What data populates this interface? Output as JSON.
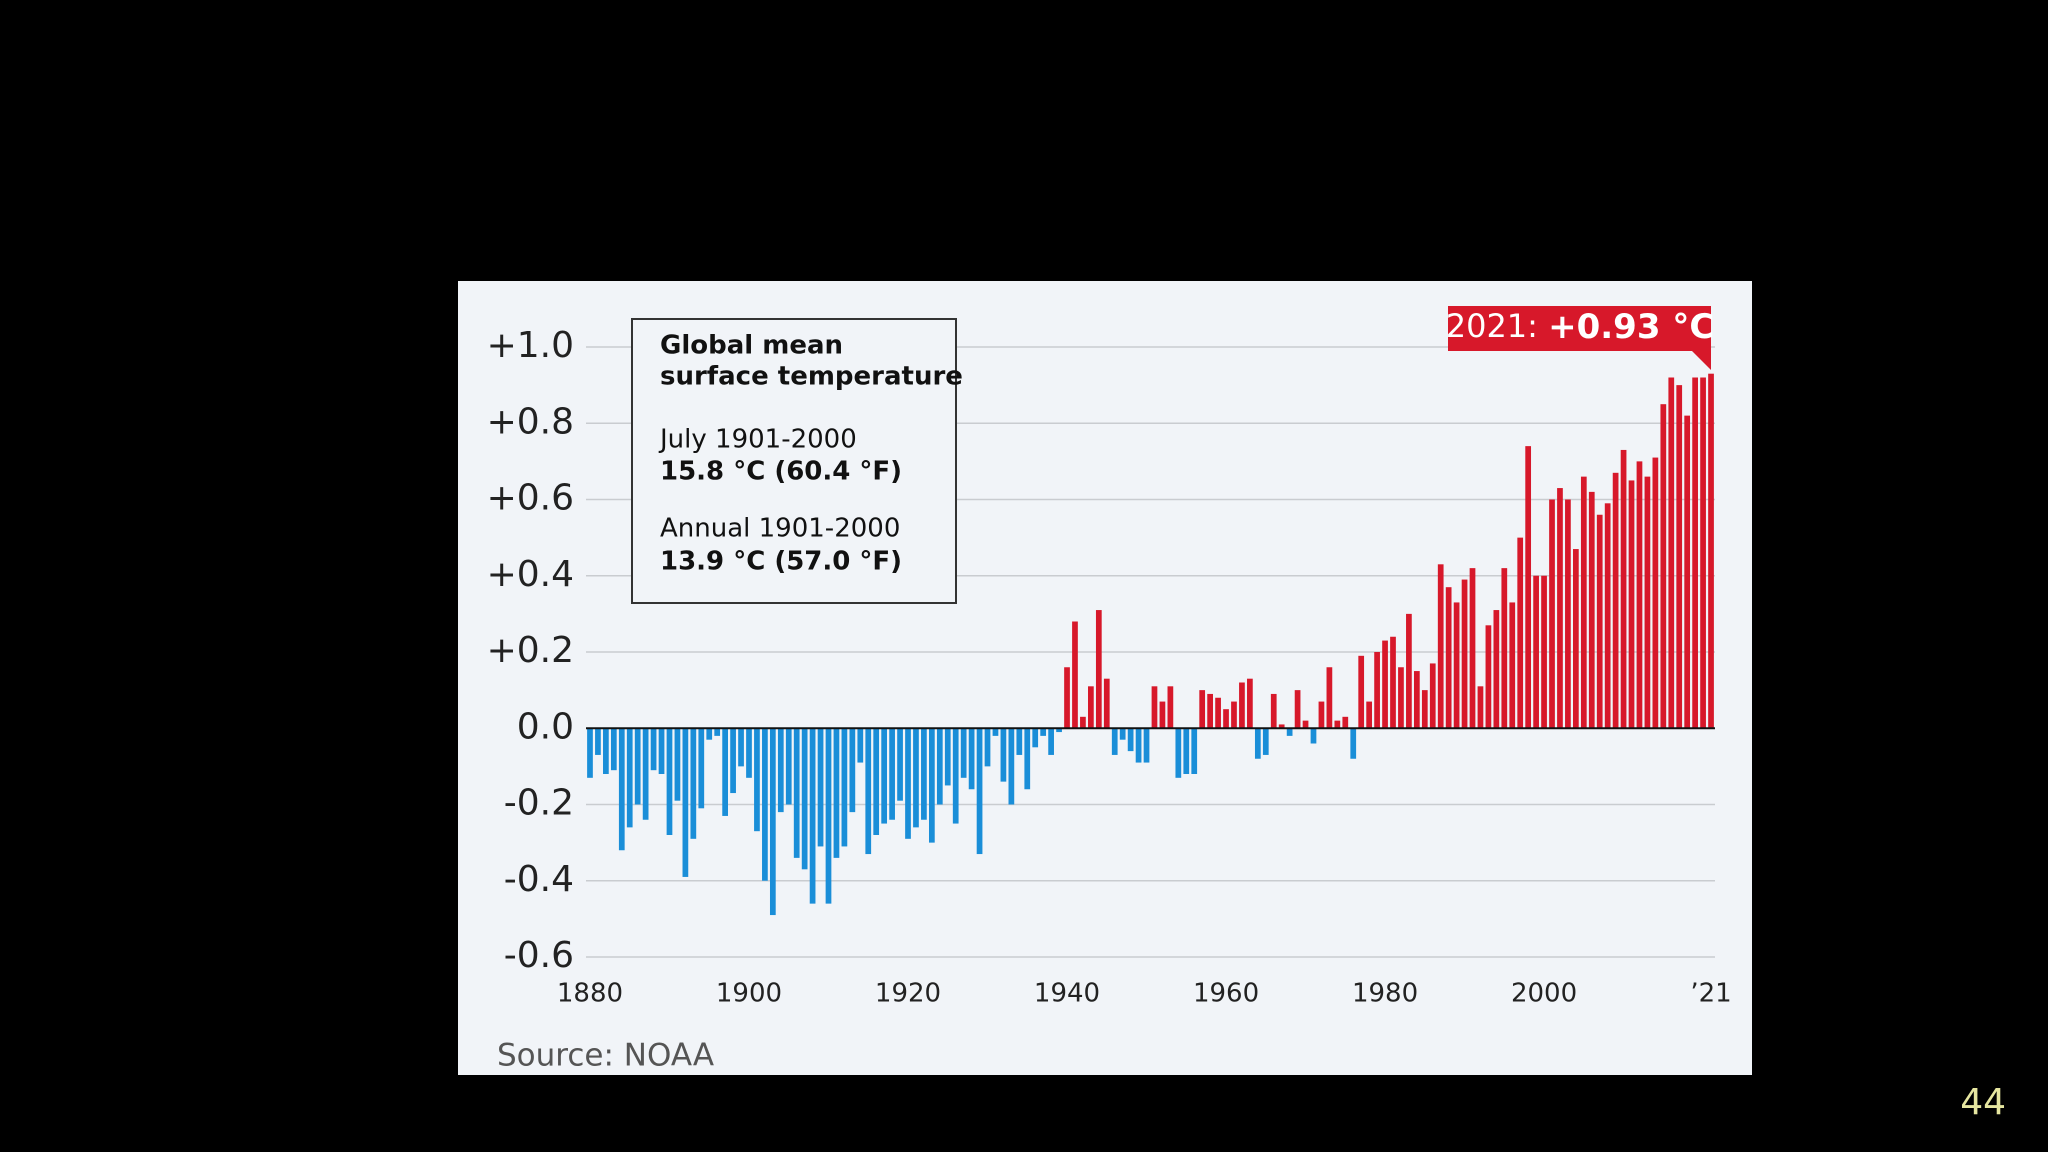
{
  "chart_data": {
    "type": "bar",
    "x": [
      1880,
      1881,
      1882,
      1883,
      1884,
      1885,
      1886,
      1887,
      1888,
      1889,
      1890,
      1891,
      1892,
      1893,
      1894,
      1895,
      1896,
      1897,
      1898,
      1899,
      1900,
      1901,
      1902,
      1903,
      1904,
      1905,
      1906,
      1907,
      1908,
      1909,
      1910,
      1911,
      1912,
      1913,
      1914,
      1915,
      1916,
      1917,
      1918,
      1919,
      1920,
      1921,
      1922,
      1923,
      1924,
      1925,
      1926,
      1927,
      1928,
      1929,
      1930,
      1931,
      1932,
      1933,
      1934,
      1935,
      1936,
      1937,
      1938,
      1939,
      1940,
      1941,
      1942,
      1943,
      1944,
      1945,
      1946,
      1947,
      1948,
      1949,
      1950,
      1951,
      1952,
      1953,
      1954,
      1955,
      1956,
      1957,
      1958,
      1959,
      1960,
      1961,
      1962,
      1963,
      1964,
      1965,
      1966,
      1967,
      1968,
      1969,
      1970,
      1971,
      1972,
      1973,
      1974,
      1975,
      1976,
      1977,
      1978,
      1979,
      1980,
      1981,
      1982,
      1983,
      1984,
      1985,
      1986,
      1987,
      1988,
      1989,
      1990,
      1991,
      1992,
      1993,
      1994,
      1995,
      1996,
      1997,
      1998,
      1999,
      2000,
      2001,
      2002,
      2003,
      2004,
      2005,
      2006,
      2007,
      2008,
      2009,
      2010,
      2011,
      2012,
      2013,
      2014,
      2015,
      2016,
      2017,
      2018,
      2019,
      2020,
      2021
    ],
    "values": [
      -0.13,
      -0.07,
      -0.12,
      -0.11,
      -0.32,
      -0.26,
      -0.2,
      -0.24,
      -0.11,
      -0.12,
      -0.28,
      -0.19,
      -0.39,
      -0.29,
      -0.21,
      -0.03,
      -0.02,
      -0.23,
      -0.17,
      -0.1,
      -0.13,
      -0.27,
      -0.4,
      -0.49,
      -0.22,
      -0.2,
      -0.34,
      -0.37,
      -0.46,
      -0.31,
      -0.46,
      -0.34,
      -0.31,
      -0.22,
      -0.09,
      -0.33,
      -0.28,
      -0.25,
      -0.24,
      -0.19,
      -0.29,
      -0.26,
      -0.24,
      -0.3,
      -0.2,
      -0.15,
      -0.25,
      -0.13,
      -0.16,
      -0.33,
      -0.1,
      -0.02,
      -0.14,
      -0.2,
      -0.07,
      -0.16,
      -0.05,
      -0.02,
      -0.07,
      -0.01,
      0.16,
      0.28,
      0.03,
      0.11,
      0.31,
      0.13,
      -0.07,
      -0.03,
      -0.06,
      -0.09,
      -0.09,
      0.11,
      0.07,
      0.11,
      -0.13,
      -0.12,
      -0.12,
      0.1,
      0.09,
      0.08,
      0.05,
      0.07,
      0.12,
      0.13,
      -0.08,
      -0.07,
      0.09,
      0.01,
      -0.02,
      0.1,
      0.02,
      -0.04,
      0.07,
      0.16,
      0.02,
      0.03,
      -0.08,
      0.19,
      0.07,
      0.2,
      0.23,
      0.24,
      0.16,
      0.3,
      0.15,
      0.1,
      0.17,
      0.43,
      0.37,
      0.33,
      0.39,
      0.42,
      0.11,
      0.27,
      0.31,
      0.42,
      0.33,
      0.5,
      0.74,
      0.4,
      0.4,
      0.6,
      0.63,
      0.6,
      0.47,
      0.66,
      0.62,
      0.56,
      0.59,
      0.67,
      0.73,
      0.65,
      0.7,
      0.66,
      0.71,
      0.85,
      0.92,
      0.9,
      0.82,
      0.92,
      0.92,
      0.93
    ],
    "colors": {
      "positive": "#d7182a",
      "negative": "#1a8ed8"
    },
    "xlim": [
      1879.5,
      2021.5
    ],
    "xticks": [
      1880,
      1900,
      1920,
      1940,
      1960,
      1980,
      2000,
      {
        "value": 2021,
        "label": "’21"
      }
    ],
    "ylim": [
      -0.6,
      1.0
    ],
    "yticks": [
      -0.6,
      -0.4,
      -0.2,
      {
        "value": 0,
        "label": "0.0"
      },
      {
        "value": 0.2,
        "label": "+0.2"
      },
      {
        "value": 0.4,
        "label": "+0.4"
      },
      {
        "value": 0.6,
        "label": "+0.6"
      },
      {
        "value": 0.8,
        "label": "+0.8"
      },
      {
        "value": 1.0,
        "label": "+1.0"
      }
    ],
    "grid": true,
    "annotation": [
      "2021:",
      "+0.93 °C"
    ],
    "info_box": {
      "title": [
        "Global mean",
        "surface temperature"
      ],
      "items": [
        [
          "July 1901-2000",
          "15.8 °C (60.4 °F)"
        ],
        [
          "Annual 1901-2000",
          "13.9 °C (57.0 °F)"
        ]
      ]
    },
    "source": "Source: NOAA"
  },
  "page_number": "44"
}
